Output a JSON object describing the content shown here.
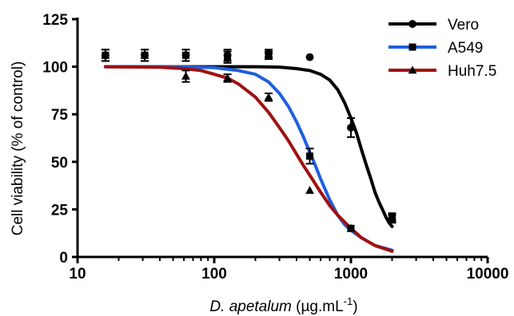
{
  "chart_data": {
    "type": "line",
    "title": "",
    "xlabel": {
      "italic": "D. apetalum",
      "unit_prefix": " (µg.mL",
      "unit_sup": "-1",
      "unit_suffix": ")"
    },
    "ylabel": "Cell viability (% of control)",
    "x_scale": "log",
    "xlim": [
      10,
      10000
    ],
    "ylim": [
      0,
      125
    ],
    "x_ticks": [
      "10",
      "100",
      "1000",
      "10000"
    ],
    "y_ticks": [
      "0",
      "25",
      "50",
      "75",
      "100",
      "125"
    ],
    "grid": false,
    "legend_position": "top-right",
    "series": [
      {
        "name": "Vero",
        "color": "#000000",
        "marker": "circle",
        "curve": [
          [
            16,
            100
          ],
          [
            30,
            100
          ],
          [
            60,
            100
          ],
          [
            100,
            100
          ],
          [
            200,
            100
          ],
          [
            300,
            99.8
          ],
          [
            400,
            99
          ],
          [
            500,
            98
          ],
          [
            600,
            96
          ],
          [
            700,
            93
          ],
          [
            800,
            88
          ],
          [
            900,
            81
          ],
          [
            1000,
            73
          ],
          [
            1100,
            65
          ],
          [
            1200,
            56
          ],
          [
            1300,
            48
          ],
          [
            1400,
            41
          ],
          [
            1500,
            34
          ],
          [
            1600,
            29
          ],
          [
            1700,
            25
          ],
          [
            1800,
            21
          ],
          [
            1900,
            18
          ],
          [
            2000,
            16
          ]
        ],
        "points": [
          {
            "x": 16,
            "y": 106,
            "err": 3
          },
          {
            "x": 31,
            "y": 106,
            "err": 3
          },
          {
            "x": 62,
            "y": 106,
            "err": 3
          },
          {
            "x": 125,
            "y": 106,
            "err": 3
          },
          {
            "x": 250,
            "y": 107,
            "err": 2
          },
          {
            "x": 500,
            "y": 105,
            "err": 0
          },
          {
            "x": 1000,
            "y": 68,
            "err": 5
          },
          {
            "x": 2000,
            "y": 20,
            "err": 2
          }
        ]
      },
      {
        "name": "A549",
        "color": "#1f5fe0",
        "marker": "square",
        "curve": [
          [
            16,
            100
          ],
          [
            50,
            100
          ],
          [
            100,
            99.5
          ],
          [
            150,
            98
          ],
          [
            200,
            96
          ],
          [
            250,
            92
          ],
          [
            300,
            86
          ],
          [
            350,
            79
          ],
          [
            400,
            71
          ],
          [
            450,
            63
          ],
          [
            500,
            55
          ],
          [
            550,
            48
          ],
          [
            600,
            41
          ],
          [
            700,
            30
          ],
          [
            800,
            22
          ],
          [
            900,
            17
          ],
          [
            1000,
            14
          ],
          [
            1200,
            10
          ],
          [
            1500,
            6
          ],
          [
            2000,
            3.5
          ]
        ],
        "points": [
          {
            "x": 16,
            "y": 106,
            "err": 3
          },
          {
            "x": 31,
            "y": 106,
            "err": 3
          },
          {
            "x": 62,
            "y": 106,
            "err": 3
          },
          {
            "x": 125,
            "y": 105,
            "err": 3
          },
          {
            "x": 250,
            "y": 106,
            "err": 2
          },
          {
            "x": 500,
            "y": 53,
            "err": 4
          },
          {
            "x": 1000,
            "y": 15,
            "err": 0
          },
          {
            "x": 2000,
            "y": 21,
            "err": 2
          }
        ]
      },
      {
        "name": "Huh7.5",
        "color": "#a01010",
        "marker": "triangle",
        "curve": [
          [
            16,
            100
          ],
          [
            40,
            99.7
          ],
          [
            60,
            99
          ],
          [
            80,
            98
          ],
          [
            100,
            96
          ],
          [
            125,
            94
          ],
          [
            150,
            91
          ],
          [
            200,
            84
          ],
          [
            250,
            76
          ],
          [
            300,
            68
          ],
          [
            350,
            61
          ],
          [
            400,
            54
          ],
          [
            450,
            48
          ],
          [
            500,
            43
          ],
          [
            600,
            34
          ],
          [
            700,
            27
          ],
          [
            800,
            22
          ],
          [
            1000,
            15
          ],
          [
            1200,
            10
          ],
          [
            1500,
            6
          ],
          [
            2000,
            3
          ]
        ],
        "points": [
          {
            "x": 16,
            "y": 106,
            "err": 3
          },
          {
            "x": 31,
            "y": 106,
            "err": 3
          },
          {
            "x": 62,
            "y": 95,
            "err": 3
          },
          {
            "x": 125,
            "y": 94,
            "err": 2
          },
          {
            "x": 250,
            "y": 84,
            "err": 2
          },
          {
            "x": 500,
            "y": 35,
            "err": 0
          },
          {
            "x": 1000,
            "y": 15,
            "err": 0
          },
          {
            "x": 2000,
            "y": 20,
            "err": 2
          }
        ]
      }
    ]
  }
}
